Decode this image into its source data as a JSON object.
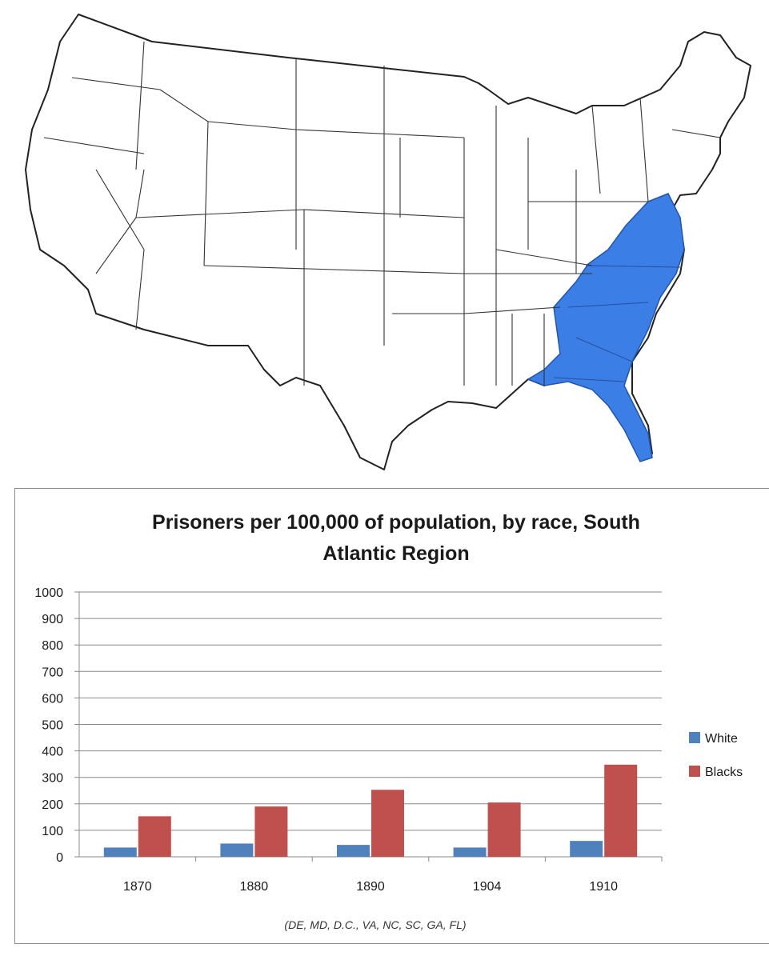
{
  "map": {
    "highlight_color": "#3b7ee6",
    "outline_color": "#222222"
  },
  "chart_data": {
    "type": "bar",
    "title_lines": [
      "Prisoners per 100,000 of population, by race, South",
      "Atlantic Region"
    ],
    "categories": [
      "1870",
      "1880",
      "1890",
      "1904",
      "1910"
    ],
    "series": [
      {
        "name": "White",
        "color": "#4f81bd",
        "values": [
          35,
          50,
          45,
          35,
          60
        ]
      },
      {
        "name": "Blacks",
        "color": "#c0504d",
        "values": [
          153,
          190,
          253,
          205,
          348
        ]
      }
    ],
    "ylim": [
      0,
      1000
    ],
    "yticks": [
      "0",
      "100",
      "200",
      "300",
      "400",
      "500",
      "600",
      "700",
      "800",
      "900",
      "1000"
    ],
    "grid": true,
    "legend_position": "right",
    "note": "(DE, MD, D.C., VA, NC, SC, GA, FL)"
  }
}
